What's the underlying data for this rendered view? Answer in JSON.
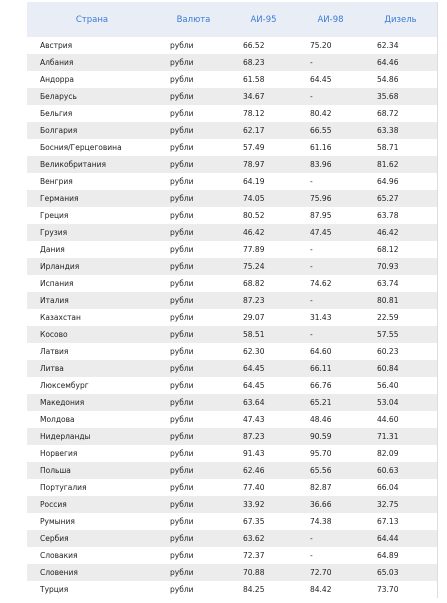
{
  "table": {
    "header": [
      "Страна",
      "Валюта",
      "АИ-95",
      "АИ-98",
      "Дизель"
    ],
    "rows": [
      [
        "Австрия",
        "рубли",
        "66.52",
        "75.20",
        "62.34"
      ],
      [
        "Албания",
        "рубли",
        "68.23",
        "-",
        "64.46"
      ],
      [
        "Андорра",
        "рубли",
        "61.58",
        "64.45",
        "54.86"
      ],
      [
        "Беларусь",
        "рубли",
        "34.67",
        "-",
        "35.68"
      ],
      [
        "Бельгия",
        "рубли",
        "78.12",
        "80.42",
        "68.72"
      ],
      [
        "Болгария",
        "рубли",
        "62.17",
        "66.55",
        "63.38"
      ],
      [
        "Босния/Герцеговина",
        "рубли",
        "57.49",
        "61.16",
        "58.71"
      ],
      [
        "Великобритания",
        "рубли",
        "78.97",
        "83.96",
        "81.62"
      ],
      [
        "Венгрия",
        "рубли",
        "64.19",
        "-",
        "64.96"
      ],
      [
        "Германия",
        "рубли",
        "74.05",
        "75.96",
        "65.27"
      ],
      [
        "Греция",
        "рубли",
        "80.52",
        "87.95",
        "63.78"
      ],
      [
        "Грузия",
        "рубли",
        "46.42",
        "47.45",
        "46.42"
      ],
      [
        "Дания",
        "рубли",
        "77.89",
        "-",
        "68.12"
      ],
      [
        "Ирландия",
        "рубли",
        "75.24",
        "-",
        "70.93"
      ],
      [
        "Испания",
        "рубли",
        "68.82",
        "74.62",
        "63.74"
      ],
      [
        "Италия",
        "рубли",
        "87.23",
        "-",
        "80.81"
      ],
      [
        "Казахстан",
        "рубли",
        "29.07",
        "31.43",
        "22.59"
      ],
      [
        "Косово",
        "рубли",
        "58.51",
        "-",
        "57.55"
      ],
      [
        "Латвия",
        "рубли",
        "62.30",
        "64.60",
        "60.23"
      ],
      [
        "Литва",
        "рубли",
        "64.45",
        "66.11",
        "60.84"
      ],
      [
        "Люксембург",
        "рубли",
        "64.45",
        "66.76",
        "56.40"
      ],
      [
        "Македония",
        "рубли",
        "63.64",
        "65.21",
        "53.04"
      ],
      [
        "Молдова",
        "рубли",
        "47.43",
        "48.46",
        "44.60"
      ],
      [
        "Нидерланды",
        "рубли",
        "87.23",
        "90.59",
        "71.31"
      ],
      [
        "Норвегия",
        "рубли",
        "91.43",
        "95.70",
        "82.09"
      ],
      [
        "Польша",
        "рубли",
        "62.46",
        "65.56",
        "60.63"
      ],
      [
        "Португалия",
        "рубли",
        "77.40",
        "82.87",
        "66.04"
      ],
      [
        "Россия",
        "рубли",
        "33.92",
        "36.66",
        "32.75"
      ],
      [
        "Румыния",
        "рубли",
        "67.35",
        "74.38",
        "67.13"
      ],
      [
        "Сербия",
        "рубли",
        "63.62",
        "-",
        "64.44"
      ],
      [
        "Словакия",
        "рубли",
        "72.37",
        "-",
        "64.89"
      ],
      [
        "Словения",
        "рубли",
        "70.88",
        "72.70",
        "65.03"
      ],
      [
        "Турция",
        "рубли",
        "84.25",
        "84.42",
        "73.70"
      ]
    ]
  }
}
